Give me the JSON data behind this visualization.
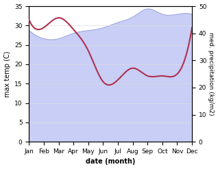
{
  "months": [
    "Jan",
    "Feb",
    "Mar",
    "Apr",
    "May",
    "Jun",
    "Jul",
    "Aug",
    "Sep",
    "Oct",
    "Nov",
    "Dec"
  ],
  "temp": [
    31.5,
    29.5,
    32.0,
    29.0,
    23.5,
    15.5,
    16.0,
    19.0,
    17.0,
    17.0,
    17.5,
    29.5
  ],
  "precip": [
    41,
    38,
    38,
    40,
    41,
    42,
    44,
    46,
    49,
    47,
    47,
    47
  ],
  "temp_color": "#b03050",
  "precip_fill_color": "#c8cef5",
  "precip_fill_edge": "#a0aae0",
  "title": "",
  "xlabel": "date (month)",
  "ylabel_left": "max temp (C)",
  "ylabel_right": "med. precipitation (kg/m2)",
  "ylim_left": [
    0,
    35
  ],
  "ylim_right": [
    0,
    50
  ],
  "yticks_left": [
    0,
    5,
    10,
    15,
    20,
    25,
    30,
    35
  ],
  "yticks_right": [
    0,
    10,
    20,
    30,
    40,
    50
  ],
  "bg_color": "#ffffff"
}
